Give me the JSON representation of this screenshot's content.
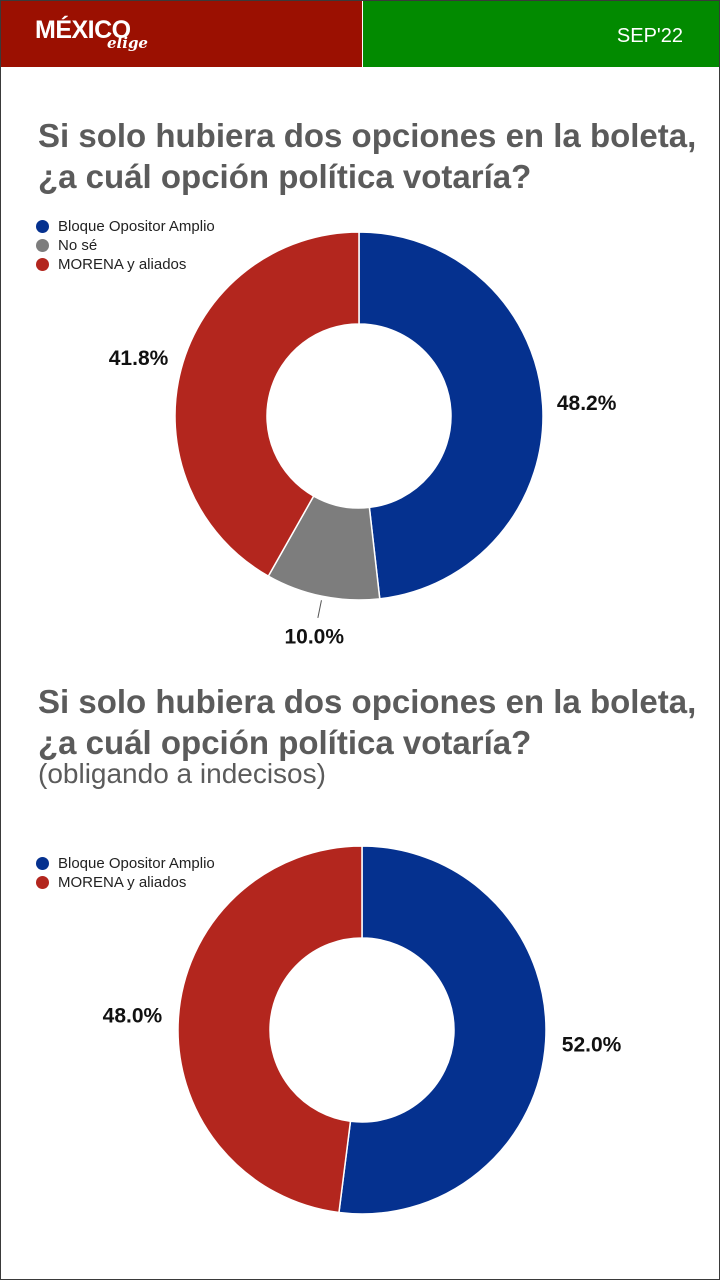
{
  "header": {
    "logo_main": "MÉXICO",
    "logo_sub": "elige",
    "date": "SEP'22",
    "colors": {
      "left": "#9b1001",
      "right": "#028a00"
    }
  },
  "charts": {
    "chart1": {
      "title_line1": "Si solo hubiera dos opciones en la boleta,",
      "title_line2": "¿a cuál opción política votaría?"
    },
    "chart2": {
      "title_line1": "Si solo hubiera dos opciones en la boleta,",
      "title_line2": "¿a cuál opción política votaría?",
      "subtitle": "(obligando a indecisos)"
    }
  },
  "chart_data": [
    {
      "type": "pie",
      "donut": true,
      "legend_position": "top-left",
      "title": "Si solo hubiera dos opciones en la boleta, ¿a cuál opción política votaría?",
      "series": [
        {
          "name": "Bloque Opositor Amplio",
          "value": 48.2,
          "label": "48.2%",
          "color": "#05318f"
        },
        {
          "name": "No sé",
          "value": 10.0,
          "label": "10.0%",
          "color": "#7d7d7d"
        },
        {
          "name": "MORENA y aliados",
          "value": 41.8,
          "label": "41.8%",
          "color": "#b3261e"
        }
      ]
    },
    {
      "type": "pie",
      "donut": true,
      "legend_position": "top-left",
      "title": "Si solo hubiera dos opciones en la boleta, ¿a cuál opción política votaría?",
      "subtitle": "(obligando a indecisos)",
      "series": [
        {
          "name": "Bloque Opositor Amplio",
          "value": 52.0,
          "label": "52.0%",
          "color": "#05318f"
        },
        {
          "name": "MORENA y aliados",
          "value": 48.0,
          "label": "48.0%",
          "color": "#b3261e"
        }
      ]
    }
  ]
}
